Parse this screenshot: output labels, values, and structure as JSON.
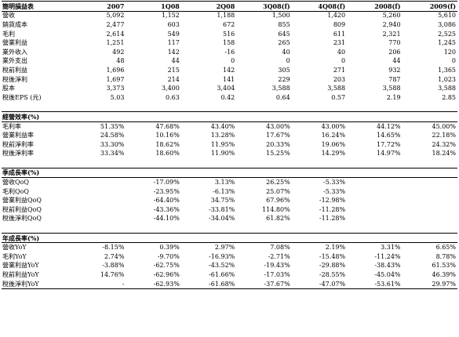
{
  "columns": [
    "2007",
    "1Q08",
    "2Q08",
    "3Q08(f)",
    "4Q08(f)",
    "2008(f)",
    "2009(f)"
  ],
  "sections": [
    {
      "header": "簡明損益表",
      "is_column_header": true,
      "rows": [
        {
          "label": "營收",
          "values": [
            "5,092",
            "1,152",
            "1,188",
            "1,500",
            "1,420",
            "5,260",
            "5,610"
          ]
        },
        {
          "label": "銷貨成本",
          "values": [
            "2,477",
            "603",
            "672",
            "855",
            "809",
            "2,940",
            "3,086"
          ]
        },
        {
          "label": "毛利",
          "values": [
            "2,614",
            "549",
            "516",
            "645",
            "611",
            "2,321",
            "2,525"
          ]
        },
        {
          "label": "營業利益",
          "values": [
            "1,251",
            "117",
            "158",
            "265",
            "231",
            "770",
            "1,245"
          ]
        },
        {
          "label": "業外收入",
          "values": [
            "492",
            "142",
            "-16",
            "40",
            "40",
            "206",
            "120"
          ]
        },
        {
          "label": "業外支出",
          "values": [
            "48",
            "44",
            "0",
            "0",
            "0",
            "44",
            "0"
          ]
        },
        {
          "label": "稅前利益",
          "values": [
            "1,696",
            "215",
            "142",
            "305",
            "271",
            "932",
            "1,365"
          ]
        },
        {
          "label": "稅後淨利",
          "values": [
            "1,697",
            "214",
            "141",
            "229",
            "203",
            "787",
            "1,023"
          ]
        },
        {
          "label": "股本",
          "values": [
            "3,373",
            "3,400",
            "3,404",
            "3,588",
            "3,588",
            "3,588",
            "3,588"
          ]
        },
        {
          "label": "稅後EPS (元)",
          "values": [
            "5.03",
            "0.63",
            "0.42",
            "0.64",
            "0.57",
            "2.19",
            "2.85"
          ]
        }
      ]
    },
    {
      "header": "經營效率(%)",
      "rows": [
        {
          "label": "毛利率",
          "values": [
            "51.35%",
            "47.68%",
            "43.40%",
            "43.00%",
            "43.00%",
            "44.12%",
            "45.00%"
          ]
        },
        {
          "label": "營業利益率",
          "values": [
            "24.58%",
            "10.16%",
            "13.28%",
            "17.67%",
            "16.24%",
            "14.65%",
            "22.18%"
          ]
        },
        {
          "label": "稅前淨利率",
          "values": [
            "33.30%",
            "18.62%",
            "11.95%",
            "20.33%",
            "19.06%",
            "17.72%",
            "24.32%"
          ]
        },
        {
          "label": "稅後淨利率",
          "values": [
            "33.34%",
            "18.60%",
            "11.90%",
            "15.25%",
            "14.29%",
            "14.97%",
            "18.24%"
          ]
        }
      ]
    },
    {
      "header": "季成長率(%)",
      "rows": [
        {
          "label": "營收QoQ",
          "values": [
            "",
            "-17.09%",
            "3.13%",
            "26.25%",
            "-5.33%",
            "",
            ""
          ]
        },
        {
          "label": "毛利QoQ",
          "values": [
            "",
            "-23.95%",
            "-6.13%",
            "25.07%",
            "-5.33%",
            "",
            ""
          ]
        },
        {
          "label": "營業利益QoQ",
          "values": [
            "",
            "-64.40%",
            "34.75%",
            "67.96%",
            "-12.98%",
            "",
            ""
          ]
        },
        {
          "label": "稅前利益QoQ",
          "values": [
            "",
            "-43.36%",
            "-33.81%",
            "114.80%",
            "-11.28%",
            "",
            ""
          ]
        },
        {
          "label": "稅後淨利QoQ",
          "values": [
            "",
            "-44.10%",
            "-34.04%",
            "61.82%",
            "-11.28%",
            "",
            ""
          ]
        }
      ]
    },
    {
      "header": "年成長率(%)",
      "rows": [
        {
          "label": "營收YoY",
          "values": [
            "-8.15%",
            "0.39%",
            "2.97%",
            "7.08%",
            "2.19%",
            "3.31%",
            "6.65%"
          ]
        },
        {
          "label": "毛利YoY",
          "values": [
            "2.74%",
            "-9.70%",
            "-16.93%",
            "-2.71%",
            "-15.48%",
            "-11.24%",
            "8.78%"
          ]
        },
        {
          "label": "營業利益YoY",
          "values": [
            "-3.88%",
            "-62.75%",
            "-43.52%",
            "-19.43%",
            "-29.88%",
            "-38.43%",
            "61.53%"
          ]
        },
        {
          "label": "稅前利益YoY",
          "values": [
            "14.76%",
            "-62.96%",
            "-61.66%",
            "-17.03%",
            "-28.55%",
            "-45.04%",
            "46.39%"
          ]
        },
        {
          "label": "稅後淨利YoY",
          "values": [
            "-",
            "-62.93%",
            "-61.68%",
            "-37.67%",
            "-47.07%",
            "-53.61%",
            "29.97%"
          ]
        }
      ]
    }
  ]
}
